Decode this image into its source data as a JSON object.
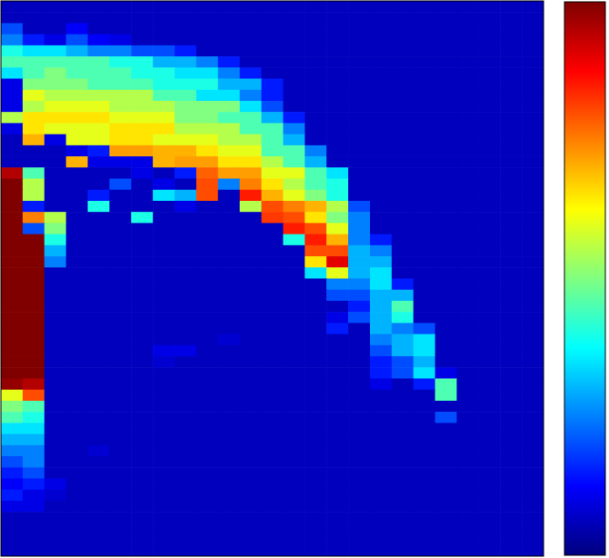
{
  "chart_data": {
    "type": "heatmap",
    "tick_labels": false,
    "clim": [
      0,
      1
    ],
    "cells": [
      [
        0.06,
        0.06,
        0.06,
        0.06,
        0.06,
        0.06,
        0.06,
        0.06,
        0.06,
        0.06,
        0.06,
        0.06,
        0.06,
        0.06,
        0.06,
        0.06,
        0.06,
        0.06,
        0.06,
        0.06,
        0.06,
        0.06,
        0.06,
        0.06,
        0.06
      ],
      [
        0.06,
        0.06,
        0.06,
        0.06,
        0.06,
        0.06,
        0.06,
        0.06,
        0.06,
        0.06,
        0.06,
        0.06,
        0.06,
        0.06,
        0.06,
        0.06,
        0.06,
        0.06,
        0.06,
        0.06,
        0.06,
        0.06,
        0.06,
        0.06,
        0.06
      ],
      [
        0.2,
        0.06,
        0.06,
        0.12,
        0.06,
        0.06,
        0.06,
        0.06,
        0.06,
        0.06,
        0.06,
        0.06,
        0.06,
        0.06,
        0.06,
        0.06,
        0.06,
        0.06,
        0.06,
        0.06,
        0.06,
        0.06,
        0.06,
        0.06,
        0.06
      ],
      [
        0.25,
        0.15,
        0.1,
        0.2,
        0.12,
        0.1,
        0.06,
        0.06,
        0.06,
        0.06,
        0.06,
        0.06,
        0.06,
        0.06,
        0.06,
        0.06,
        0.06,
        0.06,
        0.06,
        0.06,
        0.06,
        0.06,
        0.06,
        0.06,
        0.06
      ],
      [
        0.4,
        0.35,
        0.35,
        0.3,
        0.25,
        0.25,
        0.2,
        0.2,
        0.15,
        0.06,
        0.06,
        0.06,
        0.06,
        0.06,
        0.06,
        0.06,
        0.06,
        0.06,
        0.06,
        0.06,
        0.06,
        0.06,
        0.06,
        0.06,
        0.06
      ],
      [
        0.45,
        0.45,
        0.45,
        0.45,
        0.45,
        0.4,
        0.4,
        0.3,
        0.3,
        0.25,
        0.15,
        0.06,
        0.06,
        0.06,
        0.06,
        0.06,
        0.06,
        0.06,
        0.06,
        0.06,
        0.06,
        0.06,
        0.06,
        0.06,
        0.06
      ],
      [
        0.35,
        0.45,
        0.5,
        0.45,
        0.45,
        0.45,
        0.4,
        0.4,
        0.35,
        0.35,
        0.25,
        0.15,
        0.06,
        0.06,
        0.06,
        0.06,
        0.06,
        0.06,
        0.06,
        0.06,
        0.06,
        0.06,
        0.06,
        0.06,
        0.06
      ],
      [
        0.1,
        0.5,
        0.5,
        0.5,
        0.45,
        0.45,
        0.45,
        0.4,
        0.4,
        0.4,
        0.3,
        0.3,
        0.15,
        0.06,
        0.06,
        0.06,
        0.06,
        0.06,
        0.06,
        0.06,
        0.06,
        0.06,
        0.06,
        0.06,
        0.06
      ],
      [
        0.1,
        0.6,
        0.55,
        0.55,
        0.55,
        0.55,
        0.55,
        0.45,
        0.45,
        0.35,
        0.35,
        0.25,
        0.15,
        0.06,
        0.06,
        0.06,
        0.06,
        0.06,
        0.06,
        0.06,
        0.06,
        0.06,
        0.06,
        0.06,
        0.06
      ],
      [
        0.1,
        0.55,
        0.6,
        0.6,
        0.6,
        0.55,
        0.55,
        0.55,
        0.5,
        0.5,
        0.5,
        0.35,
        0.2,
        0.06,
        0.06,
        0.06,
        0.06,
        0.06,
        0.06,
        0.06,
        0.06,
        0.06,
        0.06,
        0.06,
        0.06
      ],
      [
        0.55,
        0.65,
        0.65,
        0.65,
        0.65,
        0.6,
        0.6,
        0.6,
        0.5,
        0.5,
        0.45,
        0.45,
        0.3,
        0.15,
        0.06,
        0.06,
        0.06,
        0.06,
        0.06,
        0.06,
        0.06,
        0.06,
        0.06,
        0.06,
        0.06
      ],
      [
        0.1,
        0.65,
        0.6,
        0.6,
        0.6,
        0.65,
        0.65,
        0.65,
        0.55,
        0.55,
        0.55,
        0.45,
        0.45,
        0.25,
        0.06,
        0.06,
        0.06,
        0.06,
        0.06,
        0.06,
        0.06,
        0.06,
        0.06,
        0.06,
        0.06
      ],
      [
        0.06,
        0.7,
        0.1,
        0.6,
        0.6,
        0.65,
        0.65,
        0.6,
        0.6,
        0.6,
        0.55,
        0.55,
        0.45,
        0.3,
        0.06,
        0.06,
        0.06,
        0.06,
        0.06,
        0.06,
        0.06,
        0.06,
        0.06,
        0.06,
        0.06
      ],
      [
        0.06,
        0.06,
        0.06,
        0.1,
        0.15,
        0.72,
        0.72,
        0.7,
        0.7,
        0.65,
        0.6,
        0.6,
        0.45,
        0.45,
        0.25,
        0.06,
        0.06,
        0.06,
        0.06,
        0.06,
        0.06,
        0.06,
        0.06,
        0.06,
        0.06
      ],
      [
        0.06,
        0.06,
        0.06,
        0.7,
        0.1,
        0.1,
        0.1,
        0.7,
        0.72,
        0.72,
        0.65,
        0.65,
        0.55,
        0.45,
        0.3,
        0.06,
        0.06,
        0.06,
        0.06,
        0.06,
        0.06,
        0.06,
        0.06,
        0.06,
        0.06
      ],
      [
        0.95,
        0.45,
        0.06,
        0.06,
        0.06,
        0.06,
        0.1,
        0.06,
        0.15,
        0.78,
        0.72,
        0.72,
        0.6,
        0.6,
        0.45,
        0.35,
        0.06,
        0.06,
        0.06,
        0.06,
        0.06,
        0.06,
        0.06,
        0.06,
        0.06
      ],
      [
        1,
        0.55,
        0.06,
        0.06,
        0.06,
        0.2,
        0.06,
        0.1,
        0.06,
        0.8,
        0.25,
        0.75,
        0.65,
        0.55,
        0.45,
        0.4,
        0.06,
        0.06,
        0.06,
        0.06,
        0.06,
        0.06,
        0.06,
        0.06,
        0.06
      ],
      [
        1,
        0.55,
        0.06,
        0.06,
        0.15,
        0.06,
        0.06,
        0.35,
        0.3,
        0.8,
        0.06,
        0.85,
        0.7,
        0.6,
        0.5,
        0.4,
        0.06,
        0.06,
        0.06,
        0.06,
        0.06,
        0.06,
        0.06,
        0.06,
        0.06
      ],
      [
        1,
        0.15,
        0.06,
        0.06,
        0.4,
        0.06,
        0.06,
        0.06,
        0.1,
        0.06,
        0.06,
        0.55,
        0.8,
        0.75,
        0.7,
        0.55,
        0.2,
        0.06,
        0.06,
        0.06,
        0.06,
        0.06,
        0.06,
        0.06,
        0.06
      ],
      [
        1,
        0.75,
        0.55,
        0.06,
        0.06,
        0.06,
        0.4,
        0.06,
        0.06,
        0.06,
        0.06,
        0.06,
        0.82,
        0.8,
        0.65,
        0.5,
        0.25,
        0.06,
        0.06,
        0.06,
        0.06,
        0.06,
        0.06,
        0.06,
        0.06
      ],
      [
        1,
        0.2,
        0.5,
        0.06,
        0.06,
        0.06,
        0.06,
        0.06,
        0.06,
        0.06,
        0.06,
        0.06,
        0.06,
        0.85,
        0.8,
        0.6,
        0.25,
        0.06,
        0.06,
        0.06,
        0.06,
        0.06,
        0.06,
        0.06,
        0.06
      ],
      [
        1,
        1,
        0.4,
        0.06,
        0.06,
        0.06,
        0.06,
        0.06,
        0.06,
        0.06,
        0.06,
        0.06,
        0.06,
        0.4,
        0.85,
        0.7,
        0.25,
        0.15,
        0.06,
        0.06,
        0.06,
        0.06,
        0.06,
        0.06,
        0.06
      ],
      [
        1,
        1,
        0.3,
        0.06,
        0.06,
        0.06,
        0.06,
        0.06,
        0.06,
        0.06,
        0.06,
        0.06,
        0.06,
        0.06,
        0.8,
        0.8,
        0.3,
        0.25,
        0.06,
        0.06,
        0.06,
        0.06,
        0.06,
        0.06,
        0.06
      ],
      [
        1,
        1,
        0.25,
        0.06,
        0.06,
        0.06,
        0.06,
        0.06,
        0.06,
        0.06,
        0.06,
        0.06,
        0.06,
        0.06,
        0.65,
        0.9,
        0.3,
        0.3,
        0.06,
        0.06,
        0.06,
        0.06,
        0.06,
        0.06,
        0.06
      ],
      [
        1,
        1,
        0.06,
        0.06,
        0.06,
        0.06,
        0.06,
        0.06,
        0.06,
        0.06,
        0.06,
        0.06,
        0.06,
        0.06,
        0.35,
        0.6,
        0.3,
        0.35,
        0.06,
        0.06,
        0.06,
        0.06,
        0.06,
        0.06,
        0.06
      ],
      [
        1,
        1,
        0.06,
        0.06,
        0.06,
        0.06,
        0.06,
        0.06,
        0.06,
        0.06,
        0.06,
        0.06,
        0.06,
        0.06,
        0.06,
        0.25,
        0.25,
        0.35,
        0.15,
        0.06,
        0.06,
        0.06,
        0.06,
        0.06,
        0.06
      ],
      [
        1,
        1,
        0.06,
        0.06,
        0.06,
        0.06,
        0.06,
        0.06,
        0.06,
        0.06,
        0.06,
        0.06,
        0.06,
        0.06,
        0.06,
        0.2,
        0.2,
        0.3,
        0.3,
        0.06,
        0.06,
        0.06,
        0.06,
        0.06,
        0.06
      ],
      [
        1,
        1,
        0.06,
        0.06,
        0.06,
        0.06,
        0.06,
        0.06,
        0.06,
        0.06,
        0.06,
        0.06,
        0.06,
        0.06,
        0.06,
        0.06,
        0.15,
        0.3,
        0.45,
        0.06,
        0.06,
        0.06,
        0.06,
        0.06,
        0.06
      ],
      [
        1,
        1,
        0.06,
        0.06,
        0.06,
        0.06,
        0.06,
        0.06,
        0.06,
        0.06,
        0.06,
        0.06,
        0.06,
        0.06,
        0.06,
        0.1,
        0.2,
        0.3,
        0.4,
        0.06,
        0.06,
        0.06,
        0.06,
        0.06,
        0.06
      ],
      [
        1,
        1,
        0.06,
        0.06,
        0.06,
        0.06,
        0.06,
        0.06,
        0.06,
        0.06,
        0.06,
        0.06,
        0.06,
        0.06,
        0.06,
        0.15,
        0.06,
        0.3,
        0.25,
        0.2,
        0.06,
        0.06,
        0.06,
        0.06,
        0.06
      ],
      [
        1,
        1,
        0.06,
        0.06,
        0.06,
        0.06,
        0.06,
        0.06,
        0.06,
        0.06,
        0.08,
        0.06,
        0.06,
        0.06,
        0.06,
        0.06,
        0.06,
        0.25,
        0.3,
        0.35,
        0.06,
        0.06,
        0.06,
        0.06,
        0.06
      ],
      [
        1,
        1,
        0.06,
        0.06,
        0.06,
        0.06,
        0.06,
        0.1,
        0.1,
        0.06,
        0.06,
        0.06,
        0.06,
        0.06,
        0.06,
        0.06,
        0.06,
        0.2,
        0.3,
        0.35,
        0.06,
        0.06,
        0.06,
        0.06,
        0.06
      ],
      [
        1,
        1,
        0.06,
        0.06,
        0.06,
        0.06,
        0.06,
        0.08,
        0.06,
        0.06,
        0.06,
        0.06,
        0.06,
        0.06,
        0.06,
        0.06,
        0.06,
        0.15,
        0.2,
        0.3,
        0.06,
        0.06,
        0.06,
        0.06,
        0.06
      ],
      [
        1,
        1,
        0.06,
        0.06,
        0.06,
        0.06,
        0.06,
        0.06,
        0.06,
        0.06,
        0.06,
        0.06,
        0.06,
        0.06,
        0.06,
        0.06,
        0.06,
        0.15,
        0.2,
        0.35,
        0.1,
        0.06,
        0.06,
        0.06,
        0.06
      ],
      [
        0.98,
        0.95,
        0.06,
        0.06,
        0.06,
        0.06,
        0.06,
        0.06,
        0.06,
        0.06,
        0.06,
        0.06,
        0.06,
        0.06,
        0.06,
        0.06,
        0.06,
        0.1,
        0.06,
        0.15,
        0.45,
        0.06,
        0.06,
        0.06,
        0.06
      ],
      [
        0.6,
        0.8,
        0.06,
        0.06,
        0.06,
        0.06,
        0.06,
        0.06,
        0.06,
        0.06,
        0.06,
        0.06,
        0.06,
        0.06,
        0.06,
        0.06,
        0.06,
        0.06,
        0.06,
        0.06,
        0.45,
        0.06,
        0.06,
        0.06,
        0.06
      ],
      [
        0.5,
        0.45,
        0.06,
        0.06,
        0.06,
        0.06,
        0.06,
        0.06,
        0.06,
        0.06,
        0.06,
        0.06,
        0.06,
        0.06,
        0.06,
        0.06,
        0.06,
        0.06,
        0.06,
        0.06,
        0.06,
        0.06,
        0.06,
        0.06,
        0.06
      ],
      [
        0.45,
        0.4,
        0.06,
        0.06,
        0.06,
        0.06,
        0.06,
        0.06,
        0.06,
        0.06,
        0.06,
        0.06,
        0.06,
        0.06,
        0.06,
        0.06,
        0.06,
        0.06,
        0.06,
        0.06,
        0.2,
        0.06,
        0.06,
        0.06,
        0.06
      ],
      [
        0.35,
        0.35,
        0.06,
        0.06,
        0.06,
        0.06,
        0.06,
        0.06,
        0.06,
        0.06,
        0.06,
        0.06,
        0.06,
        0.06,
        0.06,
        0.06,
        0.06,
        0.06,
        0.06,
        0.06,
        0.06,
        0.06,
        0.06,
        0.06,
        0.06
      ],
      [
        0.3,
        0.3,
        0.06,
        0.06,
        0.06,
        0.06,
        0.06,
        0.06,
        0.06,
        0.06,
        0.06,
        0.06,
        0.06,
        0.06,
        0.06,
        0.06,
        0.06,
        0.06,
        0.06,
        0.06,
        0.06,
        0.06,
        0.06,
        0.06,
        0.06
      ],
      [
        0.25,
        0.25,
        0.06,
        0.06,
        0.08,
        0.06,
        0.06,
        0.06,
        0.06,
        0.06,
        0.06,
        0.06,
        0.06,
        0.06,
        0.06,
        0.06,
        0.06,
        0.06,
        0.06,
        0.06,
        0.06,
        0.06,
        0.06,
        0.06,
        0.06
      ],
      [
        0.2,
        0.25,
        0.06,
        0.06,
        0.06,
        0.06,
        0.06,
        0.06,
        0.06,
        0.06,
        0.06,
        0.06,
        0.06,
        0.06,
        0.06,
        0.06,
        0.06,
        0.06,
        0.06,
        0.06,
        0.06,
        0.06,
        0.06,
        0.06,
        0.06
      ],
      [
        0.15,
        0.2,
        0.06,
        0.06,
        0.06,
        0.06,
        0.06,
        0.06,
        0.06,
        0.06,
        0.06,
        0.06,
        0.06,
        0.06,
        0.06,
        0.06,
        0.06,
        0.06,
        0.06,
        0.06,
        0.06,
        0.06,
        0.06,
        0.06,
        0.06
      ],
      [
        0.12,
        0.15,
        0.1,
        0.06,
        0.06,
        0.06,
        0.06,
        0.06,
        0.06,
        0.06,
        0.06,
        0.06,
        0.06,
        0.06,
        0.06,
        0.06,
        0.06,
        0.06,
        0.06,
        0.06,
        0.06,
        0.06,
        0.06,
        0.06,
        0.06
      ],
      [
        0.15,
        0.1,
        0.08,
        0.06,
        0.06,
        0.06,
        0.06,
        0.06,
        0.06,
        0.06,
        0.06,
        0.06,
        0.06,
        0.06,
        0.06,
        0.06,
        0.06,
        0.06,
        0.06,
        0.06,
        0.06,
        0.06,
        0.06,
        0.06,
        0.06
      ],
      [
        0.1,
        0.1,
        0.06,
        0.06,
        0.06,
        0.06,
        0.06,
        0.06,
        0.06,
        0.06,
        0.06,
        0.06,
        0.06,
        0.06,
        0.06,
        0.06,
        0.06,
        0.06,
        0.06,
        0.06,
        0.06,
        0.06,
        0.06,
        0.06,
        0.06
      ],
      [
        0.06,
        0.06,
        0.06,
        0.06,
        0.06,
        0.06,
        0.06,
        0.06,
        0.06,
        0.06,
        0.06,
        0.06,
        0.06,
        0.06,
        0.06,
        0.06,
        0.06,
        0.06,
        0.06,
        0.06,
        0.06,
        0.06,
        0.06,
        0.06,
        0.06
      ],
      [
        0.06,
        0.06,
        0.06,
        0.06,
        0.06,
        0.06,
        0.06,
        0.06,
        0.06,
        0.06,
        0.06,
        0.06,
        0.06,
        0.06,
        0.06,
        0.06,
        0.06,
        0.06,
        0.06,
        0.06,
        0.06,
        0.06,
        0.06,
        0.06,
        0.06
      ],
      [
        0.06,
        0.06,
        0.06,
        0.06,
        0.06,
        0.06,
        0.06,
        0.06,
        0.06,
        0.06,
        0.06,
        0.06,
        0.06,
        0.06,
        0.06,
        0.06,
        0.06,
        0.06,
        0.06,
        0.06,
        0.06,
        0.06,
        0.06,
        0.06,
        0.06
      ],
      [
        0.06,
        0.06,
        0.06,
        0.06,
        0.06,
        0.06,
        0.06,
        0.06,
        0.06,
        0.06,
        0.06,
        0.06,
        0.06,
        0.06,
        0.06,
        0.06,
        0.06,
        0.06,
        0.06,
        0.06,
        0.06,
        0.06,
        0.06,
        0.06,
        0.06
      ]
    ]
  }
}
